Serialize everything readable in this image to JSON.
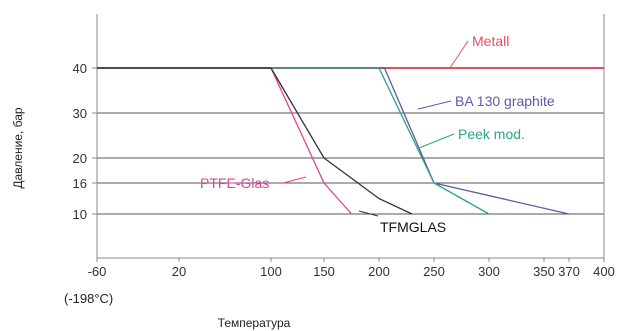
{
  "chart_data": {
    "type": "line",
    "title": "",
    "xlabel": "Температура",
    "ylabel": "Давление, бар",
    "x_note": "(-198°C)",
    "x_ticks": [
      -60,
      20,
      100,
      150,
      200,
      250,
      300,
      350,
      370,
      400
    ],
    "y_ticks": [
      10,
      16,
      20,
      30,
      40
    ],
    "xlim": [
      -60,
      400
    ],
    "ylim": [
      0,
      50
    ],
    "grid": "horizontal",
    "colors": {
      "metall": "#e05060",
      "ba130": "#5a5aa8",
      "peek": "#2aa58a",
      "ptfe": "#e8409a",
      "tfmglas": "#333333",
      "grid": "#555555",
      "axis": "#888888"
    },
    "series": [
      {
        "name": "Metall",
        "key": "metall",
        "points": [
          [
            -60,
            40
          ],
          [
            400,
            40
          ]
        ]
      },
      {
        "name": "BA 130 graphite",
        "key": "ba130",
        "points": [
          [
            -60,
            40
          ],
          [
            205,
            40
          ],
          [
            250,
            16
          ],
          [
            370,
            10
          ]
        ]
      },
      {
        "name": "Peek mod.",
        "key": "peek",
        "points": [
          [
            -60,
            40
          ],
          [
            200,
            40
          ],
          [
            250,
            16
          ],
          [
            300,
            10
          ]
        ]
      },
      {
        "name": "PTFE-Glas",
        "key": "ptfe",
        "points": [
          [
            -60,
            40
          ],
          [
            100,
            40
          ],
          [
            150,
            16
          ],
          [
            175,
            10
          ]
        ]
      },
      {
        "name": "TFMGLAS",
        "key": "tfmglas",
        "points": [
          [
            -60,
            40
          ],
          [
            100,
            40
          ],
          [
            150,
            20
          ],
          [
            200,
            13
          ],
          [
            230,
            10
          ]
        ]
      }
    ]
  }
}
